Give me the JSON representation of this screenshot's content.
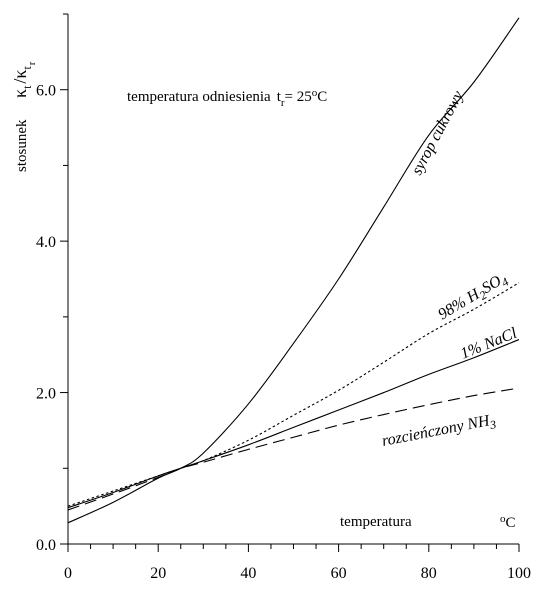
{
  "chart_data": {
    "type": "line",
    "title": "",
    "xlabel": {
      "text": "temperatura",
      "unit_sup": "o",
      "unit": "C"
    },
    "ylabel": {
      "prefix": "stosunek",
      "kappa_t": "κ",
      "sub_t": "t",
      "slash": "/",
      "kappa_tr": "κ",
      "sub_tr_t": "t",
      "sub_tr_r": "r"
    },
    "reference_note": {
      "text": "temperatura odniesienia",
      "t": "t",
      "sub_r": "r",
      "eq": "= 25",
      "sup_o": "o",
      "unit": "C"
    },
    "xlim": [
      0,
      100
    ],
    "ylim": [
      0,
      7.0
    ],
    "x_ticks": [
      0,
      20,
      40,
      60,
      80,
      100
    ],
    "x_tick_labels": [
      "0",
      "20",
      "40",
      "60",
      "80",
      "100"
    ],
    "x_minor_step": 5,
    "y_ticks": [
      0,
      2.0,
      4.0,
      6.0
    ],
    "y_tick_labels": [
      "0.0",
      "2.0",
      "4.0",
      "6.0"
    ],
    "y_minor_step": 1.0,
    "grid": false,
    "legend": "none",
    "series": [
      {
        "name": "syrop cukrowy",
        "style": "solid",
        "x": [
          0,
          10,
          20,
          25,
          30,
          40,
          50,
          60,
          70,
          80,
          90,
          100
        ],
        "y": [
          0.28,
          0.55,
          0.87,
          1.0,
          1.2,
          1.85,
          2.65,
          3.5,
          4.45,
          5.4,
          6.1,
          6.95
        ]
      },
      {
        "name": "98% H2SO4",
        "label_parts": [
          "98% H",
          "2",
          "SO",
          "4"
        ],
        "style": "dotted",
        "x": [
          0,
          10,
          20,
          25,
          30,
          40,
          50,
          60,
          70,
          80,
          90,
          100
        ],
        "y": [
          0.5,
          0.7,
          0.9,
          1.0,
          1.1,
          1.37,
          1.7,
          2.03,
          2.4,
          2.78,
          3.1,
          3.45
        ]
      },
      {
        "name": "1% NaCl",
        "style": "solid",
        "x": [
          0,
          10,
          20,
          25,
          30,
          40,
          50,
          60,
          70,
          80,
          90,
          100
        ],
        "y": [
          0.48,
          0.68,
          0.9,
          1.0,
          1.1,
          1.31,
          1.54,
          1.77,
          2.0,
          2.24,
          2.46,
          2.7
        ]
      },
      {
        "name": "rozcieńczony NH3",
        "label_parts": [
          "rozcieńczony NH",
          "3"
        ],
        "style": "dashed",
        "x": [
          0,
          10,
          20,
          25,
          30,
          40,
          50,
          60,
          70,
          80,
          90,
          100
        ],
        "y": [
          0.45,
          0.66,
          0.88,
          1.0,
          1.08,
          1.25,
          1.41,
          1.57,
          1.71,
          1.84,
          1.96,
          2.06
        ]
      }
    ]
  }
}
